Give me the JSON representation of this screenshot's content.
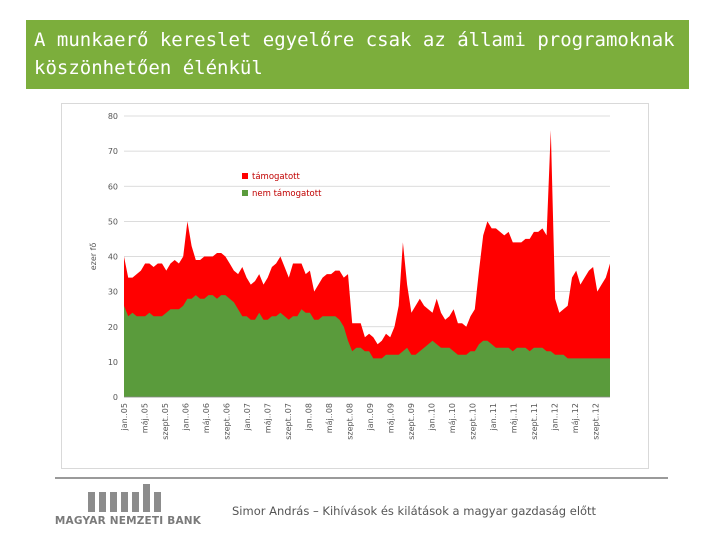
{
  "header": {
    "title": "A munkaerő kereslet egyelőre csak az állami programoknak köszönhetően élénkül"
  },
  "footer": {
    "logo_text": "MAGYAR NEMZETI BANK",
    "caption": "Simor András – Kihívások és kilátások a magyar gazdaság előtt"
  },
  "colors": {
    "title_bg": "#7cae3c",
    "supported": "#ff0000",
    "not_supported": "#5a9b3c"
  },
  "chart_data": {
    "type": "area",
    "stacked": true,
    "ylabel": "ezer fő",
    "ylim": [
      0,
      80
    ],
    "yticks": [
      0,
      10,
      20,
      30,
      40,
      50,
      60,
      70,
      80
    ],
    "grid": true,
    "legend": "top-left",
    "x_ticks": [
      "jan..05",
      "máj..05",
      "szept..05",
      "jan..06",
      "máj..06",
      "szept..06",
      "jan..07",
      "máj..07",
      "szept..07",
      "jan..08",
      "máj..08",
      "szept..08",
      "jan..09",
      "máj..09",
      "szept..09",
      "jan..10",
      "máj..10",
      "szept..10",
      "jan..11",
      "máj..11",
      "szept..11",
      "jan..12",
      "máj..12",
      "szept..12"
    ],
    "series": [
      {
        "name": "nem támogatott",
        "values": [
          26,
          23,
          24,
          23,
          23,
          23,
          24,
          23,
          23,
          23,
          24,
          25,
          25,
          25,
          26,
          28,
          28,
          29,
          28,
          28,
          29,
          29,
          28,
          29,
          29,
          28,
          27,
          25,
          23,
          23,
          22,
          22,
          24,
          22,
          22,
          23,
          23,
          24,
          23,
          22,
          23,
          23,
          25,
          24,
          24,
          22,
          22,
          23,
          23,
          23,
          23,
          22,
          20,
          16,
          13,
          14,
          14,
          13,
          13,
          11,
          11,
          11,
          12,
          12,
          12,
          12,
          13,
          14,
          12,
          12,
          13,
          14,
          15,
          16,
          15,
          14,
          14,
          14,
          13,
          12,
          12,
          12,
          13,
          13,
          15,
          16,
          16,
          15,
          14,
          14,
          14,
          14,
          13,
          14,
          14,
          14,
          13,
          14,
          14,
          14,
          13,
          13,
          12,
          12,
          12,
          11,
          11,
          11,
          11,
          11,
          11,
          11,
          11,
          11,
          11,
          11
        ]
      },
      {
        "name": "támogatott",
        "values": [
          14,
          11,
          10,
          12,
          13,
          15,
          14,
          14,
          15,
          15,
          12,
          13,
          14,
          13,
          14,
          22,
          15,
          10,
          11,
          12,
          11,
          11,
          13,
          12,
          11,
          10,
          9,
          10,
          14,
          11,
          10,
          11,
          11,
          10,
          12,
          14,
          15,
          16,
          14,
          12,
          15,
          15,
          13,
          11,
          12,
          8,
          10,
          11,
          12,
          12,
          13,
          14,
          14,
          19,
          8,
          7,
          7,
          4,
          5,
          6,
          4,
          5,
          6,
          5,
          8,
          14,
          31,
          18,
          12,
          14,
          15,
          12,
          10,
          8,
          13,
          10,
          8,
          9,
          12,
          9,
          9,
          8,
          10,
          12,
          21,
          30,
          34,
          33,
          34,
          33,
          32,
          33,
          31,
          30,
          30,
          31,
          32,
          33,
          33,
          34,
          33,
          63,
          16,
          12,
          13,
          15,
          23,
          25,
          21,
          23,
          25,
          26,
          19,
          21,
          23,
          27
        ]
      }
    ]
  }
}
